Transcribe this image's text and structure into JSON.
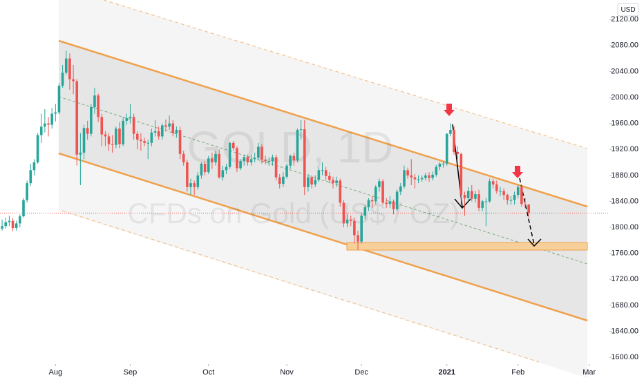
{
  "chart_data": {
    "type": "candlestick",
    "title": "GOLD, 1D",
    "subtitle": "CFDs on Gold (US$ / OZ)",
    "currency": "USD",
    "up_color": "#26a69a",
    "down_color": "#ef5350",
    "xlim": [
      -0.6,
      170.3
    ],
    "xticks": [
      {
        "value": 15,
        "label": "Aug"
      },
      {
        "value": 36,
        "label": "Sep"
      },
      {
        "value": 58,
        "label": "Oct"
      },
      {
        "value": 80,
        "label": "Nov"
      },
      {
        "value": 101,
        "label": "Dec"
      },
      {
        "value": 125,
        "label": "2021"
      },
      {
        "value": 145,
        "label": "Feb"
      },
      {
        "value": 165,
        "label": "Mar"
      }
    ],
    "ylim": [
      1565,
      2150
    ],
    "yticks": [
      {
        "value": 1600,
        "label": "1600.00"
      },
      {
        "value": 1640,
        "label": "1640.00"
      },
      {
        "value": 1680,
        "label": "1680.00"
      },
      {
        "value": 1720,
        "label": "1720.00"
      },
      {
        "value": 1760,
        "label": "1760.00"
      },
      {
        "value": 1800,
        "label": "1800.00"
      },
      {
        "value": 1840,
        "label": "1840.00"
      },
      {
        "value": 1880,
        "label": "1880.00"
      },
      {
        "value": 1920,
        "label": "1920.00"
      },
      {
        "value": 1960,
        "label": "1960.00"
      },
      {
        "value": 2000,
        "label": "2000.00"
      },
      {
        "value": 2040,
        "label": "2040.00"
      },
      {
        "value": 2080,
        "label": "2080.00"
      },
      {
        "value": 2120,
        "label": "2120.00"
      }
    ],
    "ohlc": [
      [
        1798,
        1812,
        1795,
        1802
      ],
      [
        1802,
        1815,
        1798,
        1808
      ],
      [
        1808,
        1818,
        1802,
        1810
      ],
      [
        1810,
        1814,
        1794,
        1799
      ],
      [
        1799,
        1810,
        1795,
        1806
      ],
      [
        1806,
        1820,
        1800,
        1817
      ],
      [
        1817,
        1845,
        1815,
        1842
      ],
      [
        1842,
        1872,
        1838,
        1868
      ],
      [
        1868,
        1898,
        1864,
        1888
      ],
      [
        1888,
        1905,
        1880,
        1900
      ],
      [
        1900,
        1945,
        1898,
        1942
      ],
      [
        1942,
        1975,
        1930,
        1955
      ],
      [
        1955,
        1982,
        1946,
        1960
      ],
      [
        1960,
        1970,
        1940,
        1958
      ],
      [
        1958,
        1984,
        1952,
        1975
      ],
      [
        1975,
        1990,
        1963,
        1977
      ],
      [
        1977,
        2022,
        1974,
        2018
      ],
      [
        2018,
        2050,
        2015,
        2038
      ],
      [
        2038,
        2072,
        2035,
        2060
      ],
      [
        2060,
        2068,
        2012,
        2028
      ],
      [
        2028,
        2050,
        2005,
        2025
      ],
      [
        2025,
        2028,
        1895,
        1912
      ],
      [
        1912,
        1945,
        1865,
        1915
      ],
      [
        1915,
        1958,
        1905,
        1953
      ],
      [
        1953,
        1964,
        1935,
        1944
      ],
      [
        1944,
        1990,
        1940,
        1985
      ],
      [
        1985,
        2015,
        1975,
        2003
      ],
      [
        2003,
        2006,
        1962,
        1970
      ],
      [
        1970,
        1975,
        1925,
        1943
      ],
      [
        1943,
        1948,
        1925,
        1940
      ],
      [
        1940,
        1945,
        1918,
        1928
      ],
      [
        1928,
        1942,
        1915,
        1927
      ],
      [
        1927,
        1955,
        1922,
        1952
      ],
      [
        1952,
        1962,
        1922,
        1928
      ],
      [
        1928,
        1970,
        1925,
        1964
      ],
      [
        1964,
        1975,
        1958,
        1968
      ],
      [
        1968,
        1990,
        1960,
        1970
      ],
      [
        1970,
        1975,
        1935,
        1944
      ],
      [
        1944,
        1948,
        1920,
        1935
      ],
      [
        1935,
        1945,
        1918,
        1933
      ],
      [
        1933,
        1938,
        1925,
        1930
      ],
      [
        1930,
        1935,
        1905,
        1930
      ],
      [
        1930,
        1952,
        1925,
        1946
      ],
      [
        1946,
        1965,
        1940,
        1948
      ],
      [
        1948,
        1955,
        1935,
        1940
      ],
      [
        1940,
        1960,
        1935,
        1957
      ],
      [
        1957,
        1966,
        1948,
        1955
      ],
      [
        1955,
        1972,
        1950,
        1960
      ],
      [
        1960,
        1965,
        1940,
        1945
      ],
      [
        1945,
        1955,
        1938,
        1950
      ],
      [
        1950,
        1955,
        1905,
        1913
      ],
      [
        1913,
        1918,
        1895,
        1900
      ],
      [
        1900,
        1904,
        1855,
        1862
      ],
      [
        1862,
        1875,
        1850,
        1868
      ],
      [
        1868,
        1872,
        1850,
        1862
      ],
      [
        1862,
        1885,
        1858,
        1880
      ],
      [
        1880,
        1900,
        1875,
        1898
      ],
      [
        1898,
        1902,
        1880,
        1885
      ],
      [
        1885,
        1910,
        1882,
        1906
      ],
      [
        1906,
        1915,
        1890,
        1900
      ],
      [
        1900,
        1918,
        1895,
        1913
      ],
      [
        1913,
        1920,
        1875,
        1877
      ],
      [
        1877,
        1895,
        1872,
        1888
      ],
      [
        1888,
        1898,
        1882,
        1893
      ],
      [
        1893,
        1932,
        1890,
        1930
      ],
      [
        1930,
        1933,
        1918,
        1922
      ],
      [
        1922,
        1925,
        1885,
        1891
      ],
      [
        1891,
        1905,
        1888,
        1902
      ],
      [
        1902,
        1912,
        1895,
        1908
      ],
      [
        1908,
        1912,
        1895,
        1900
      ],
      [
        1900,
        1912,
        1895,
        1905
      ],
      [
        1905,
        1915,
        1900,
        1907
      ],
      [
        1907,
        1930,
        1904,
        1924
      ],
      [
        1924,
        1928,
        1898,
        1904
      ],
      [
        1904,
        1910,
        1897,
        1902
      ],
      [
        1902,
        1908,
        1895,
        1902
      ],
      [
        1902,
        1912,
        1895,
        1908
      ],
      [
        1908,
        1912,
        1872,
        1877
      ],
      [
        1877,
        1882,
        1860,
        1867
      ],
      [
        1867,
        1885,
        1862,
        1878
      ],
      [
        1878,
        1898,
        1875,
        1895
      ],
      [
        1895,
        1912,
        1890,
        1910
      ],
      [
        1910,
        1915,
        1895,
        1903
      ],
      [
        1903,
        1952,
        1900,
        1950
      ],
      [
        1950,
        1965,
        1935,
        1951
      ],
      [
        1951,
        1965,
        1850,
        1862
      ],
      [
        1862,
        1882,
        1855,
        1877
      ],
      [
        1877,
        1880,
        1860,
        1866
      ],
      [
        1866,
        1880,
        1862,
        1873
      ],
      [
        1873,
        1892,
        1870,
        1888
      ],
      [
        1888,
        1900,
        1880,
        1888
      ],
      [
        1888,
        1893,
        1872,
        1879
      ],
      [
        1879,
        1885,
        1868,
        1873
      ],
      [
        1873,
        1878,
        1860,
        1868
      ],
      [
        1868,
        1878,
        1862,
        1872
      ],
      [
        1872,
        1875,
        1832,
        1838
      ],
      [
        1838,
        1842,
        1800,
        1806
      ],
      [
        1806,
        1820,
        1800,
        1812
      ],
      [
        1812,
        1818,
        1802,
        1810
      ],
      [
        1810,
        1815,
        1775,
        1788
      ],
      [
        1788,
        1795,
        1765,
        1778
      ],
      [
        1778,
        1822,
        1775,
        1818
      ],
      [
        1818,
        1835,
        1812,
        1831
      ],
      [
        1831,
        1845,
        1825,
        1842
      ],
      [
        1842,
        1848,
        1830,
        1840
      ],
      [
        1840,
        1865,
        1835,
        1862
      ],
      [
        1862,
        1875,
        1855,
        1871
      ],
      [
        1871,
        1874,
        1835,
        1838
      ],
      [
        1838,
        1845,
        1830,
        1836
      ],
      [
        1836,
        1848,
        1830,
        1840
      ],
      [
        1840,
        1843,
        1820,
        1828
      ],
      [
        1828,
        1858,
        1825,
        1855
      ],
      [
        1855,
        1868,
        1850,
        1863
      ],
      [
        1863,
        1895,
        1860,
        1888
      ],
      [
        1888,
        1892,
        1875,
        1880
      ],
      [
        1880,
        1905,
        1865,
        1877
      ],
      [
        1877,
        1882,
        1860,
        1874
      ],
      [
        1874,
        1880,
        1868,
        1874
      ],
      [
        1874,
        1880,
        1870,
        1876
      ],
      [
        1876,
        1884,
        1872,
        1880
      ],
      [
        1880,
        1885,
        1870,
        1876
      ],
      [
        1876,
        1886,
        1872,
        1881
      ],
      [
        1881,
        1896,
        1878,
        1893
      ],
      [
        1893,
        1900,
        1888,
        1898
      ],
      [
        1898,
        1902,
        1892,
        1898
      ],
      [
        1898,
        1945,
        1895,
        1944
      ],
      [
        1944,
        1960,
        1940,
        1950
      ],
      [
        1950,
        1956,
        1912,
        1916
      ],
      [
        1916,
        1925,
        1905,
        1913
      ],
      [
        1913,
        1915,
        1835,
        1850
      ],
      [
        1850,
        1855,
        1818,
        1845
      ],
      [
        1845,
        1862,
        1840,
        1856
      ],
      [
        1856,
        1865,
        1840,
        1844
      ],
      [
        1844,
        1856,
        1838,
        1851
      ],
      [
        1851,
        1858,
        1825,
        1830
      ],
      [
        1830,
        1842,
        1825,
        1840
      ],
      [
        1840,
        1845,
        1802,
        1840
      ],
      [
        1840,
        1875,
        1838,
        1871
      ],
      [
        1871,
        1875,
        1860,
        1866
      ],
      [
        1866,
        1872,
        1852,
        1856
      ],
      [
        1856,
        1862,
        1848,
        1856
      ],
      [
        1856,
        1860,
        1842,
        1850
      ],
      [
        1850,
        1852,
        1835,
        1842
      ],
      [
        1842,
        1848,
        1835,
        1842
      ],
      [
        1842,
        1855,
        1835,
        1850
      ],
      [
        1850,
        1865,
        1845,
        1862
      ],
      [
        1862,
        1866,
        1832,
        1836
      ],
      [
        1836,
        1845,
        1830,
        1835
      ],
      [
        1835,
        1836,
        1815,
        1822
      ]
    ]
  }
}
